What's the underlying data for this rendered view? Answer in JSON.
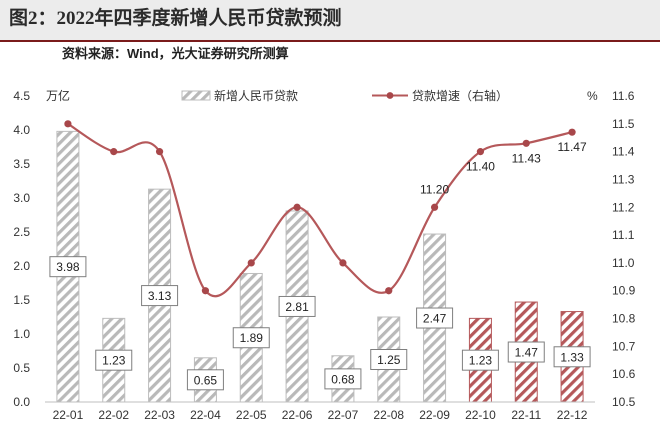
{
  "figure": {
    "title": "图2：2022年四季度新增人民币贷款预测",
    "source": "资料来源：Wind，光大证券研究所测算"
  },
  "chart_data": {
    "type": "bar",
    "categories": [
      "22-01",
      "22-02",
      "22-03",
      "22-04",
      "22-05",
      "22-06",
      "22-07",
      "22-08",
      "22-09",
      "22-10",
      "22-11",
      "22-12"
    ],
    "series": [
      {
        "name": "新增人民币贷款",
        "type": "bar",
        "axis": "left",
        "values": [
          3.98,
          1.23,
          3.13,
          0.65,
          1.89,
          2.81,
          0.68,
          1.25,
          2.47,
          1.23,
          1.47,
          1.33
        ],
        "forecast_from_index": 9,
        "color": "#c0c0c0",
        "forecast_color": "#b5585a"
      },
      {
        "name": "贷款增速（右轴）",
        "type": "line",
        "axis": "right",
        "values": [
          11.5,
          11.4,
          11.4,
          10.9,
          11.0,
          11.2,
          11.0,
          10.9,
          11.2,
          11.4,
          11.43,
          11.47
        ],
        "labels": [
          "",
          "",
          "",
          "",
          "",
          "",
          "",
          "",
          "11.20",
          "11.40",
          "11.43",
          "11.47"
        ],
        "color": "#b5585a"
      }
    ],
    "y_left": {
      "unit": "万亿",
      "ylim": [
        0,
        4.5
      ],
      "ticks": [
        "0.0",
        "0.5",
        "1.0",
        "1.5",
        "2.0",
        "2.5",
        "3.0",
        "3.5",
        "4.0",
        "4.5"
      ]
    },
    "y_right": {
      "unit": "%",
      "ylim": [
        10.5,
        11.6
      ],
      "ticks": [
        "10.5",
        "10.6",
        "10.7",
        "10.8",
        "10.9",
        "11.0",
        "11.1",
        "11.2",
        "11.3",
        "11.4",
        "11.5",
        "11.6"
      ]
    },
    "legend_position": "top",
    "grid": false
  }
}
